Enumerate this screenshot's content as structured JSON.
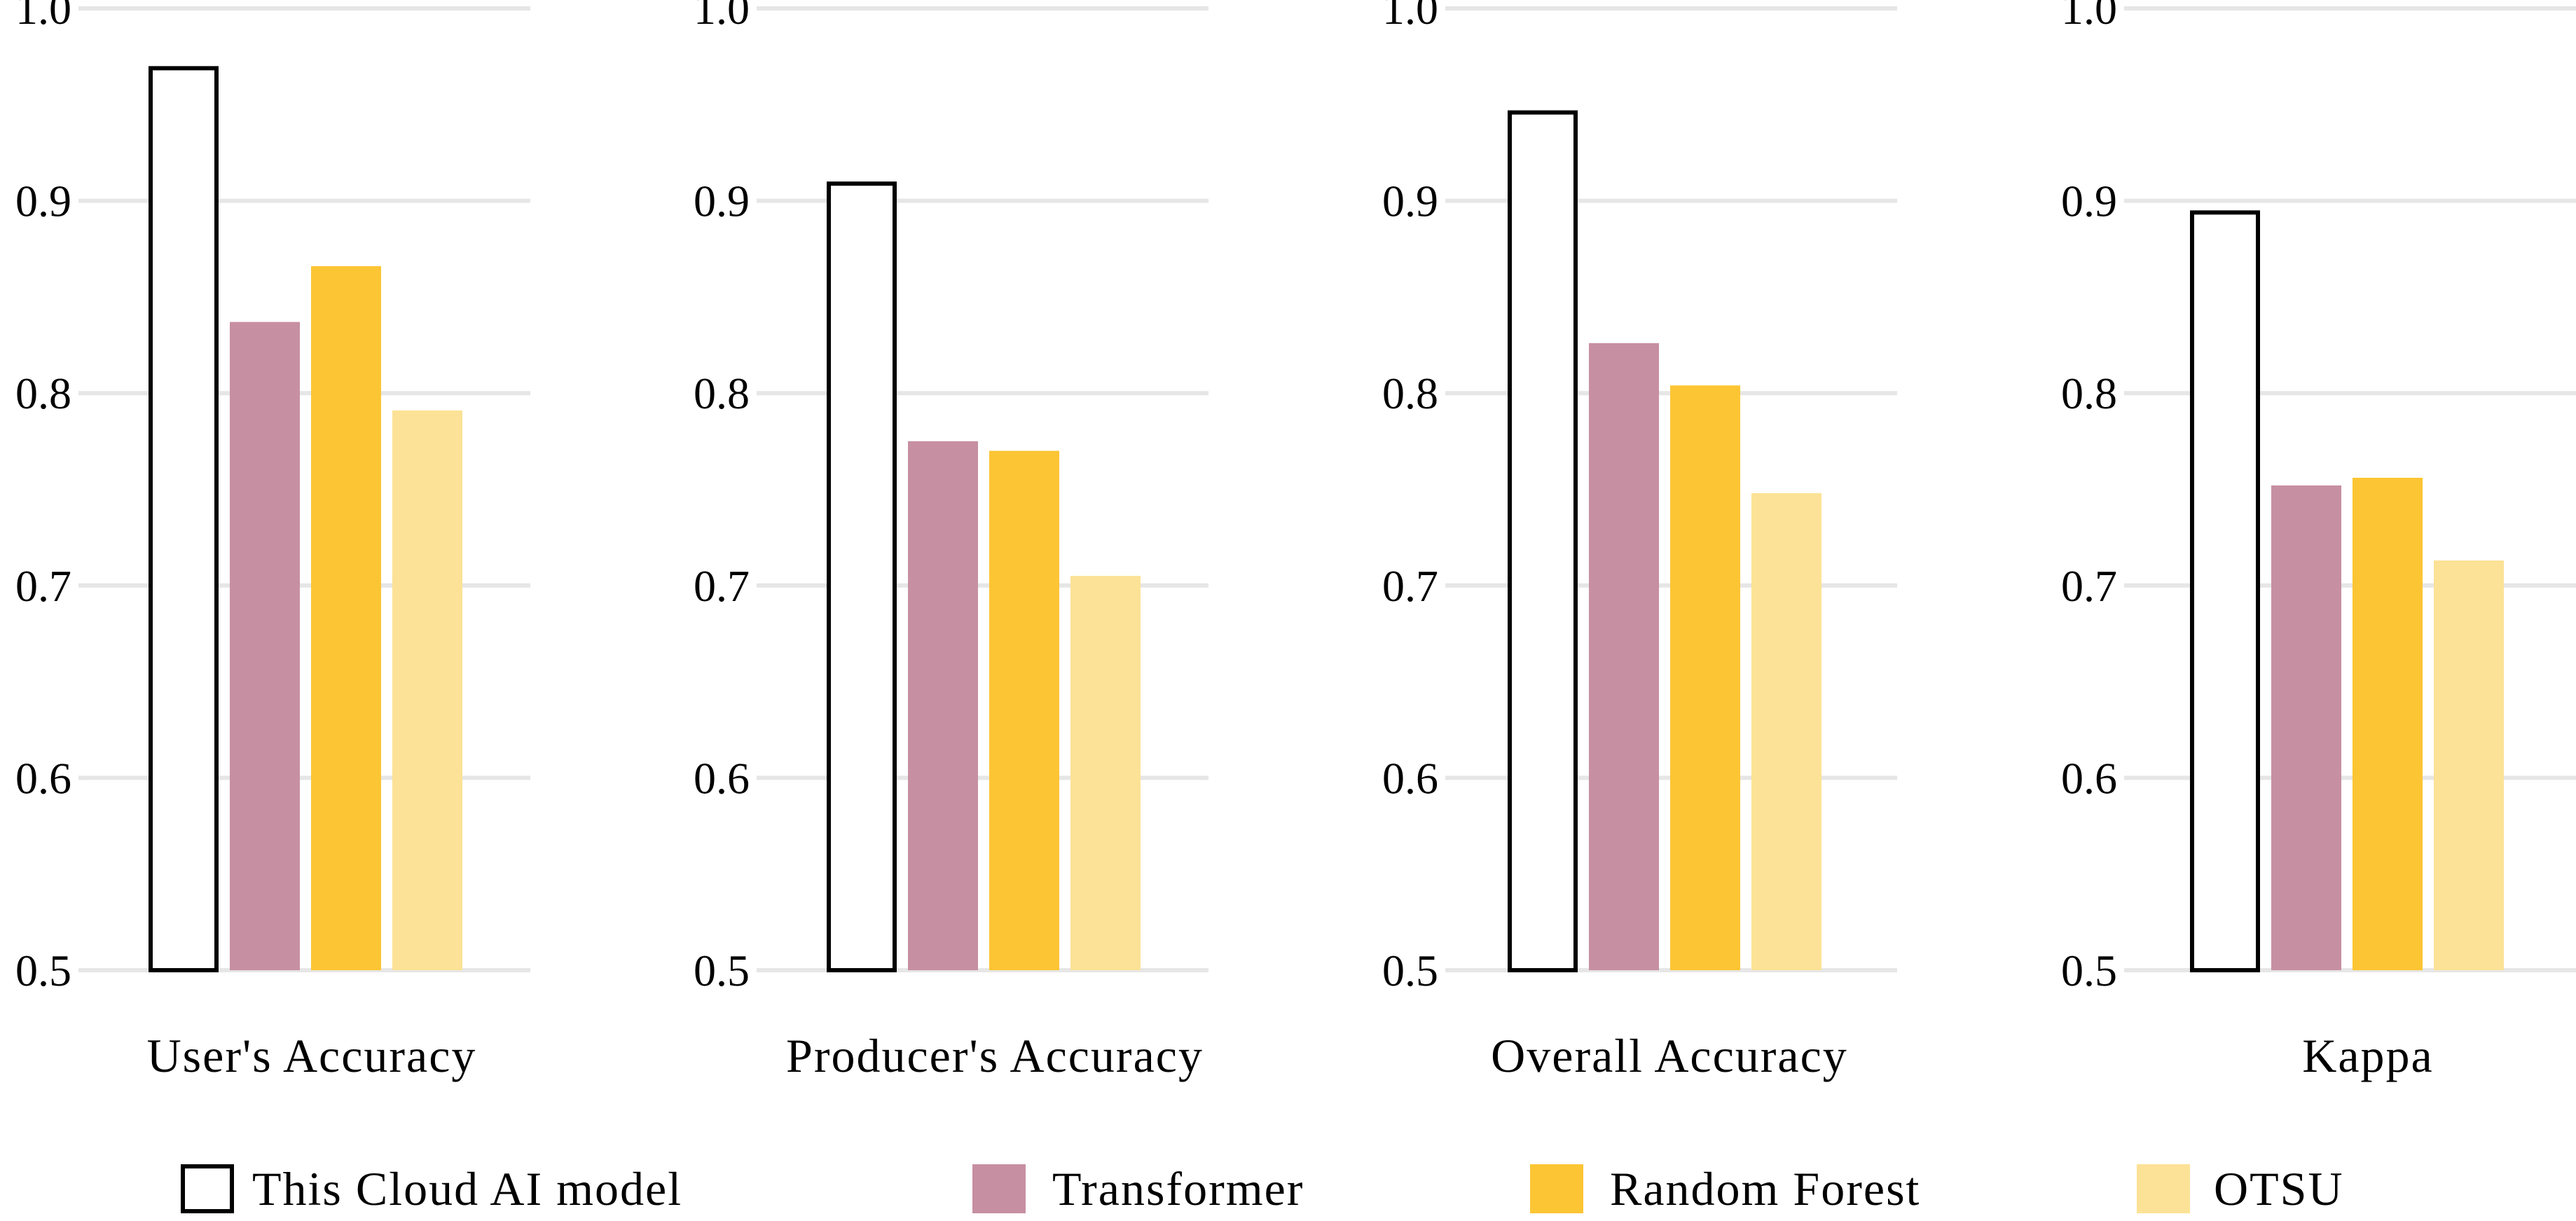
{
  "chart_data": {
    "type": "bar",
    "ylim": [
      0.5,
      1.0
    ],
    "yticks": [
      "0.5",
      "0.6",
      "0.7",
      "0.8",
      "0.9",
      "1.0"
    ],
    "grid": true,
    "legend_position": "bottom",
    "series": [
      {
        "name": "This Cloud AI model",
        "color": "#ffffff",
        "outline": "#000000"
      },
      {
        "name": "Transformer",
        "color": "#c78fa2"
      },
      {
        "name": "Random Forest",
        "color": "#fcc534"
      },
      {
        "name": "OTSU",
        "color": "#fce296"
      }
    ],
    "panels": [
      {
        "title": "User's Accuracy",
        "values": [
          0.97,
          0.837,
          0.866,
          0.791
        ]
      },
      {
        "title": "Producer's Accuracy",
        "values": [
          0.91,
          0.775,
          0.77,
          0.705
        ]
      },
      {
        "title": "Overall Accuracy",
        "values": [
          0.947,
          0.826,
          0.804,
          0.748
        ]
      },
      {
        "title": "Kappa",
        "values": [
          0.895,
          0.752,
          0.756,
          0.713
        ]
      }
    ]
  }
}
